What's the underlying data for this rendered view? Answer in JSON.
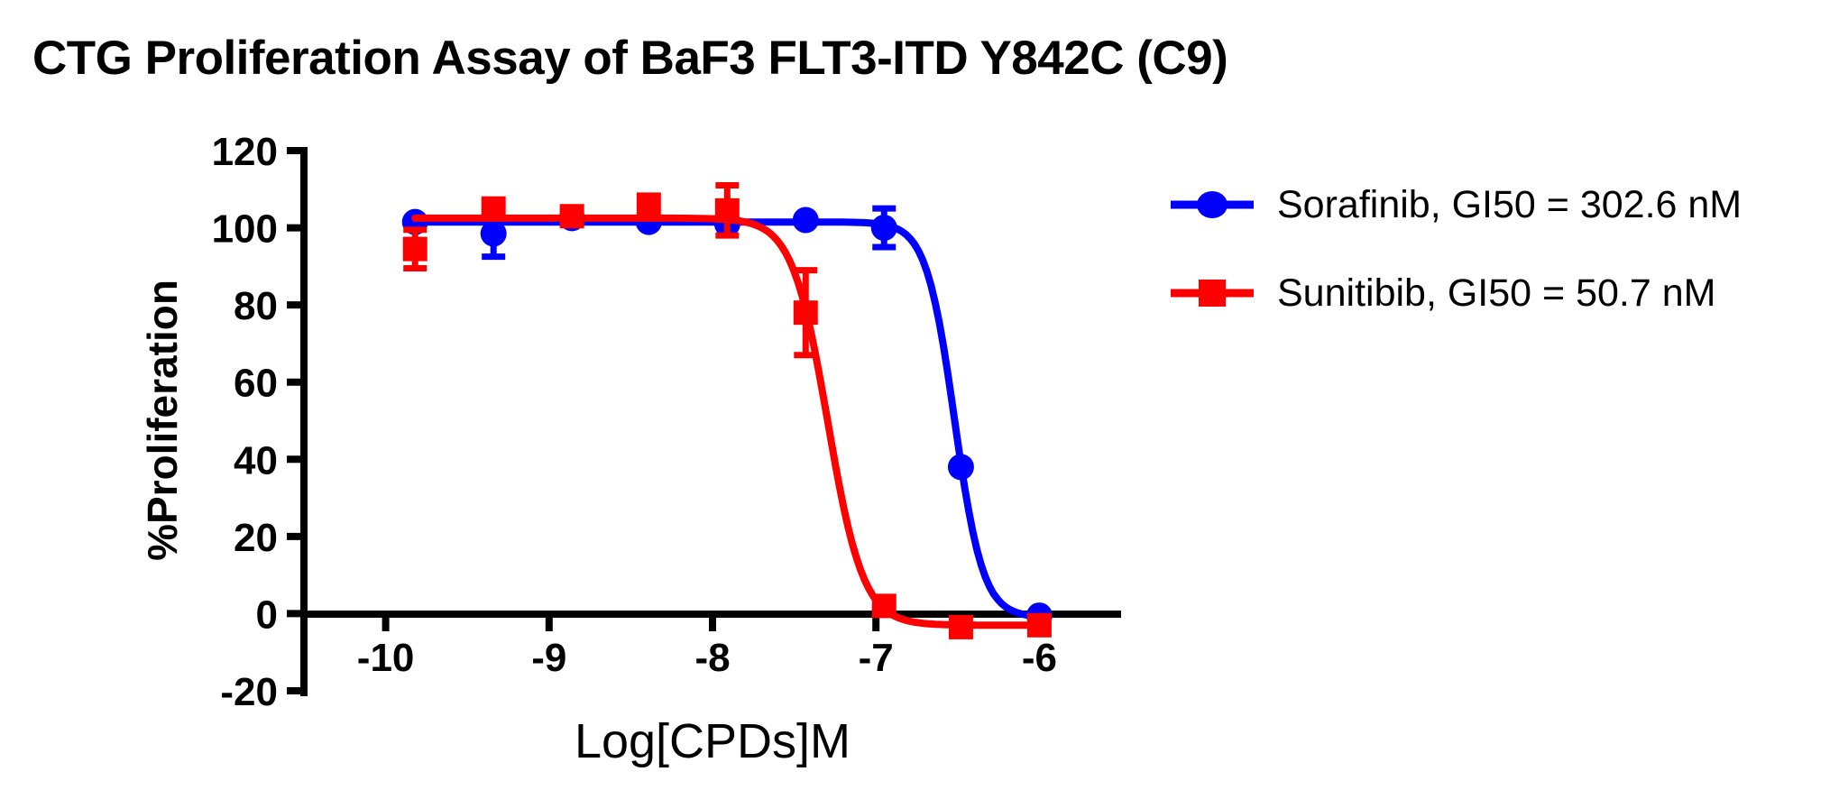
{
  "chart_data": {
    "type": "line",
    "title": "CTG Proliferation Assay of BaF3 FLT3-ITD Y842C (C9)",
    "xlabel": "Log[CPDs]M",
    "ylabel": "%Proliferation",
    "xlim": [
      -10.5,
      -5.5
    ],
    "ylim": [
      -20,
      120
    ],
    "xticks": [
      -10,
      -9,
      -8,
      -7,
      -6
    ],
    "yticks": [
      -20,
      0,
      20,
      40,
      60,
      80,
      100,
      120
    ],
    "grid": false,
    "legend_position": "right-of-plot",
    "axis_color": "#000000",
    "x": [
      -9.82,
      -9.34,
      -8.86,
      -8.39,
      -7.91,
      -7.43,
      -6.95,
      -6.48,
      -6.0
    ],
    "series": [
      {
        "name": "Sorafinib, GI50 = 302.6 nM",
        "color": "#0000FF",
        "marker": "circle",
        "y": [
          101.5,
          98.5,
          102.5,
          101.5,
          101.0,
          102.0,
          100.0,
          38.0,
          -0.5
        ],
        "yerr": [
          0,
          6,
          0,
          0,
          0,
          0,
          5,
          0,
          0
        ],
        "fit": {
          "top": 101.5,
          "bottom": -1.0,
          "log_gi50": -6.519,
          "hill": 5.0
        }
      },
      {
        "name": "Sunitibib, GI50 = 50.7 nM",
        "color": "#FF0000",
        "marker": "square",
        "y": [
          94.5,
          105.0,
          103.0,
          106.0,
          104.5,
          78.0,
          2.0,
          -3.5,
          -3.0
        ],
        "yerr": [
          5,
          0,
          0,
          0,
          6.5,
          11,
          0,
          0,
          0
        ],
        "fit": {
          "top": 102.5,
          "bottom": -3.0,
          "log_gi50": -7.295,
          "hill": 4.0
        }
      }
    ]
  }
}
